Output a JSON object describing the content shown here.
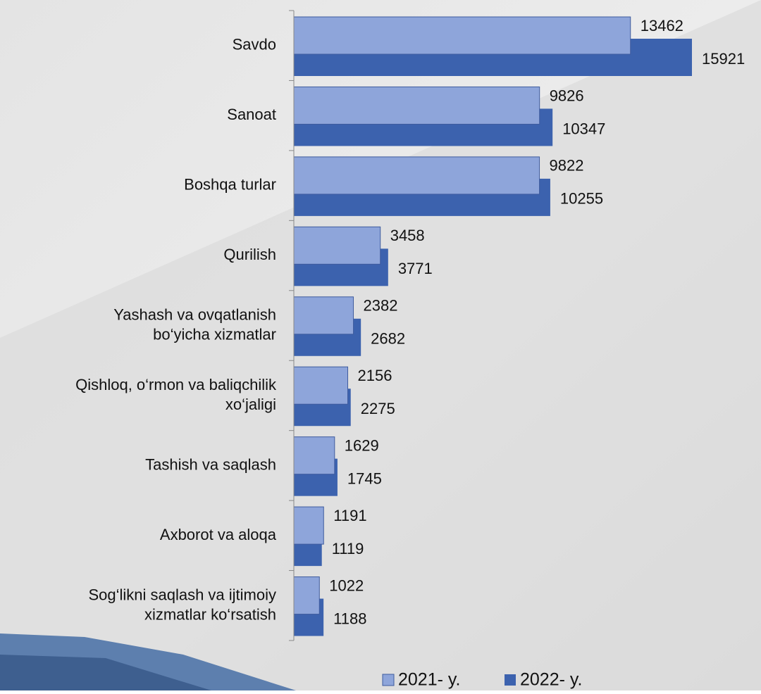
{
  "chart_data": {
    "type": "hbar",
    "categories": [
      "Savdo",
      "Sanoat",
      "Boshqa turlar",
      "Qurilish",
      "Yashash va ovqatlanish\nbo‘yicha xizmatlar",
      "Qishloq, o‘rmon va baliqchilik\nxo‘jaligi",
      "Tashish va saqlash",
      "Axborot va aloqa",
      "Sog‘likni saqlash va ijtimoiy\nxizmatlar ko‘rsatish"
    ],
    "series": [
      {
        "name": "2021- y.",
        "color": "#8ea5da",
        "values": [
          13462,
          9826,
          9822,
          3458,
          2382,
          2156,
          1629,
          1191,
          1022
        ]
      },
      {
        "name": "2022- y.",
        "color": "#3c62ae",
        "values": [
          15921,
          10347,
          10255,
          3771,
          2682,
          2275,
          1745,
          1119,
          1188
        ]
      }
    ]
  }
}
